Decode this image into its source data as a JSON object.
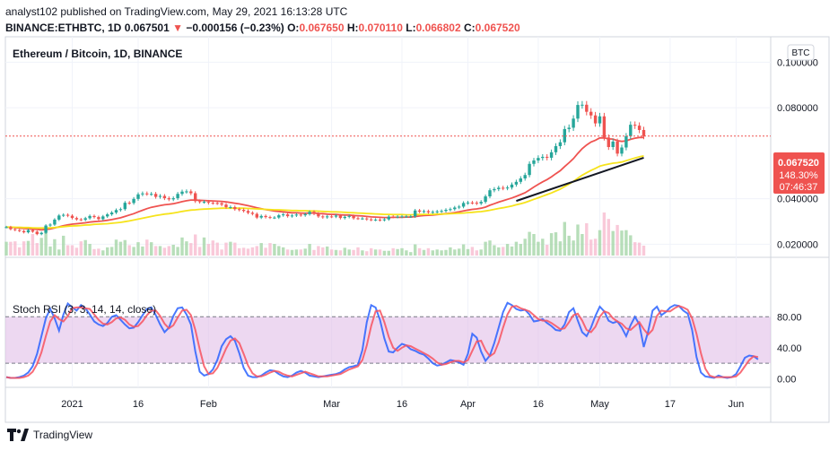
{
  "header": {
    "publish_line": "analyst102 published on TradingView.com, May 29, 2021 16:13:28 UTC",
    "symbol": "BINANCE:ETHBTC, 1D",
    "last": "0.067501",
    "change_arrow": "▼",
    "change": "−0.000156 (−0.23%)",
    "o_label": "O:",
    "o_value": "0.067650",
    "h_label": "H:",
    "h_value": "0.070110",
    "l_label": "L:",
    "l_value": "0.066802",
    "c_label": "C:",
    "c_value": "0.067520"
  },
  "chart_data": [
    {
      "type": "candlestick",
      "title": "Ethereum / Bitcoin, 1D, BINANCE",
      "currency_badge": "BTC",
      "y_axis_ticks": [
        {
          "value": 0.1,
          "label": "0.100000"
        },
        {
          "value": 0.08,
          "label": "0.080000"
        },
        {
          "value": 0.04,
          "label": "0.040000"
        },
        {
          "value": 0.02,
          "label": "0.020000"
        }
      ],
      "ylim": [
        0.015,
        0.11
      ],
      "price_label": {
        "value": 0.06752,
        "price": "0.067520",
        "change_pct": "148.30%",
        "countdown": "07:46:37"
      },
      "close_series": [
        0.0275,
        0.0266,
        0.0262,
        0.0258,
        0.0252,
        0.0262,
        0.0255,
        0.0244,
        0.025,
        0.0282,
        0.0286,
        0.0308,
        0.0326,
        0.0329,
        0.0325,
        0.0315,
        0.0309,
        0.0307,
        0.0314,
        0.0324,
        0.0319,
        0.031,
        0.0322,
        0.0331,
        0.0339,
        0.035,
        0.0354,
        0.0382,
        0.0381,
        0.0399,
        0.0419,
        0.0423,
        0.0421,
        0.0421,
        0.0408,
        0.0412,
        0.0402,
        0.0397,
        0.0402,
        0.0421,
        0.0431,
        0.0432,
        0.0424,
        0.0389,
        0.0386,
        0.0386,
        0.0382,
        0.0381,
        0.038,
        0.0374,
        0.0363,
        0.0363,
        0.0354,
        0.0351,
        0.0346,
        0.0338,
        0.0333,
        0.0317,
        0.0324,
        0.0319,
        0.0317,
        0.0317,
        0.0327,
        0.0331,
        0.0323,
        0.0326,
        0.033,
        0.0327,
        0.0332,
        0.0342,
        0.0334,
        0.0322,
        0.0318,
        0.0322,
        0.0321,
        0.0326,
        0.0315,
        0.032,
        0.0324,
        0.0314,
        0.0313,
        0.0313,
        0.0309,
        0.0307,
        0.0308,
        0.0306,
        0.0309,
        0.0321,
        0.032,
        0.0321,
        0.0322,
        0.0322,
        0.0322,
        0.0348,
        0.0343,
        0.0345,
        0.034,
        0.0342,
        0.0344,
        0.0346,
        0.0351,
        0.0354,
        0.0361,
        0.0365,
        0.0381,
        0.0383,
        0.0382,
        0.0379,
        0.0386,
        0.041,
        0.0437,
        0.0442,
        0.0448,
        0.0446,
        0.0449,
        0.0462,
        0.0474,
        0.0489,
        0.0504,
        0.0553,
        0.0568,
        0.0579,
        0.0584,
        0.058,
        0.0604,
        0.0631,
        0.0648,
        0.0706,
        0.0712,
        0.0752,
        0.0812,
        0.0813,
        0.0782,
        0.0766,
        0.0731,
        0.0762,
        0.0669,
        0.0627,
        0.0651,
        0.0598,
        0.0625,
        0.0675,
        0.0725,
        0.0721,
        0.0702,
        0.0675
      ],
      "ema_series": [
        {
          "name": "EMA 20",
          "color": "#ef5350",
          "values": [
            0.0275,
            0.0274,
            0.0273,
            0.0271,
            0.0269,
            0.0268,
            0.0267,
            0.0265,
            0.0263,
            0.0265,
            0.0267,
            0.0271,
            0.0276,
            0.0281,
            0.0285,
            0.0288,
            0.029,
            0.0292,
            0.0294,
            0.0297,
            0.0299,
            0.03,
            0.0302,
            0.0305,
            0.0308,
            0.0312,
            0.0316,
            0.0322,
            0.0328,
            0.0334,
            0.0342,
            0.0349,
            0.0356,
            0.0362,
            0.0366,
            0.037,
            0.0373,
            0.0375,
            0.0378,
            0.0382,
            0.0387,
            0.0391,
            0.0394,
            0.0394,
            0.0393,
            0.0392,
            0.0391,
            0.039,
            0.0389,
            0.0388,
            0.0386,
            0.0383,
            0.038,
            0.0377,
            0.0373,
            0.0369,
            0.0365,
            0.036,
            0.0356,
            0.0352,
            0.0349,
            0.0346,
            0.0344,
            0.0342,
            0.034,
            0.0338,
            0.0338,
            0.0337,
            0.0336,
            0.0337,
            0.0337,
            0.0335,
            0.0334,
            0.0332,
            0.0331,
            0.0331,
            0.0329,
            0.0328,
            0.0328,
            0.0326,
            0.0325,
            0.0324,
            0.0322,
            0.032,
            0.0319,
            0.0318,
            0.0317,
            0.0317,
            0.0318,
            0.0318,
            0.0318,
            0.0319,
            0.0319,
            0.0321,
            0.0324,
            0.0326,
            0.0327,
            0.0328,
            0.033,
            0.0332,
            0.0334,
            0.0336,
            0.0339,
            0.0342,
            0.0346,
            0.035,
            0.0353,
            0.0355,
            0.0358,
            0.0363,
            0.0371,
            0.0378,
            0.0385,
            0.0391,
            0.0397,
            0.0403,
            0.041,
            0.0418,
            0.0426,
            0.0438,
            0.0451,
            0.0463,
            0.0474,
            0.0484,
            0.0496,
            0.051,
            0.0523,
            0.0541,
            0.0558,
            0.0576,
            0.0599,
            0.062,
            0.0636,
            0.0649,
            0.0657,
            0.0667,
            0.0667,
            0.0663,
            0.0662,
            0.0655,
            0.0652,
            0.0654,
            0.0661,
            0.0666,
            0.0669,
            0.0669
          ]
        },
        {
          "name": "EMA 50",
          "color": "#f6e31c",
          "values": [
            0.0275,
            0.0275,
            0.0274,
            0.0274,
            0.0273,
            0.0273,
            0.0272,
            0.0271,
            0.0271,
            0.0271,
            0.0272,
            0.0273,
            0.0275,
            0.0277,
            0.0279,
            0.028,
            0.0281,
            0.0282,
            0.0284,
            0.0285,
            0.0287,
            0.0288,
            0.0289,
            0.029,
            0.0292,
            0.0294,
            0.0296,
            0.0299,
            0.0302,
            0.0306,
            0.031,
            0.0314,
            0.0318,
            0.0322,
            0.0326,
            0.0329,
            0.0332,
            0.0334,
            0.0337,
            0.034,
            0.0344,
            0.0347,
            0.035,
            0.0351,
            0.0353,
            0.0354,
            0.0355,
            0.0356,
            0.0357,
            0.0358,
            0.0358,
            0.0358,
            0.0358,
            0.0358,
            0.0358,
            0.0357,
            0.0356,
            0.0355,
            0.0354,
            0.0353,
            0.0352,
            0.0351,
            0.0351,
            0.035,
            0.0349,
            0.0348,
            0.0348,
            0.0347,
            0.0347,
            0.0346,
            0.0346,
            0.0345,
            0.0344,
            0.0343,
            0.0342,
            0.0342,
            0.0341,
            0.034,
            0.0339,
            0.0338,
            0.0337,
            0.0336,
            0.0335,
            0.0334,
            0.0333,
            0.0332,
            0.0331,
            0.0331,
            0.033,
            0.033,
            0.033,
            0.0329,
            0.0329,
            0.033,
            0.033,
            0.0331,
            0.0331,
            0.0331,
            0.0332,
            0.0332,
            0.0333,
            0.0334,
            0.0335,
            0.0336,
            0.0337,
            0.0339,
            0.034,
            0.0342,
            0.0343,
            0.0346,
            0.0349,
            0.0353,
            0.0357,
            0.036,
            0.0364,
            0.0368,
            0.0373,
            0.0378,
            0.0383,
            0.039,
            0.0397,
            0.0404,
            0.0411,
            0.0418,
            0.0425,
            0.0434,
            0.0442,
            0.0453,
            0.0464,
            0.0476,
            0.049,
            0.0503,
            0.0514,
            0.0524,
            0.0533,
            0.0543,
            0.0548,
            0.0552,
            0.0556,
            0.0558,
            0.0561,
            0.0567,
            0.0573,
            0.0579,
            0.0584,
            0.0588
          ]
        }
      ],
      "trend_line": {
        "color": "#131722",
        "from": {
          "index": 116,
          "value": 0.039
        },
        "to": {
          "index": 145,
          "value": 0.058
        }
      },
      "volume_series": [
        0.32,
        0.32,
        0.33,
        0.19,
        0.33,
        0.34,
        0.5,
        0.29,
        0.41,
        0.62,
        0.21,
        0.38,
        0.14,
        0.46,
        0.24,
        0.24,
        0.18,
        0.33,
        0.36,
        0.27,
        0.15,
        0.16,
        0.12,
        0.19,
        0.2,
        0.37,
        0.32,
        0.36,
        0.24,
        0.2,
        0.31,
        0.21,
        0.37,
        0.31,
        0.22,
        0.22,
        0.18,
        0.22,
        0.25,
        0.2,
        0.42,
        0.33,
        0.29,
        0.49,
        0.2,
        0.42,
        0.27,
        0.35,
        0.3,
        0.14,
        0.3,
        0.32,
        0.3,
        0.17,
        0.18,
        0.16,
        0.19,
        0.22,
        0.29,
        0.18,
        0.29,
        0.27,
        0.22,
        0.19,
        0.14,
        0.13,
        0.14,
        0.14,
        0.16,
        0.27,
        0.13,
        0.22,
        0.19,
        0.21,
        0.14,
        0.13,
        0.12,
        0.18,
        0.14,
        0.13,
        0.19,
        0.12,
        0.1,
        0.17,
        0.14,
        0.14,
        0.11,
        0.11,
        0.17,
        0.15,
        0.17,
        0.12,
        0.08,
        0.26,
        0.17,
        0.13,
        0.17,
        0.12,
        0.14,
        0.12,
        0.13,
        0.19,
        0.14,
        0.16,
        0.26,
        0.15,
        0.2,
        0.12,
        0.14,
        0.32,
        0.35,
        0.24,
        0.19,
        0.2,
        0.27,
        0.21,
        0.32,
        0.27,
        0.39,
        0.55,
        0.5,
        0.32,
        0.39,
        0.25,
        0.52,
        0.54,
        0.33,
        0.78,
        0.46,
        0.35,
        0.72,
        0.5,
        0.75,
        0.37,
        0.39,
        0.59,
        1.0,
        0.85,
        0.57,
        0.71,
        0.58,
        0.59,
        0.47,
        0.31,
        0.3,
        0.23
      ],
      "x_axis_labels": [
        {
          "index": 15,
          "label": "2021"
        },
        {
          "index": 30,
          "label": "16"
        },
        {
          "index": 46,
          "label": "Feb"
        },
        {
          "index": 74,
          "label": "Mar"
        },
        {
          "index": 90,
          "label": "16"
        },
        {
          "index": 105,
          "label": "Apr"
        },
        {
          "index": 121,
          "label": "16"
        },
        {
          "index": 135,
          "label": "May"
        },
        {
          "index": 151,
          "label": "17"
        },
        {
          "index": 166,
          "label": "Jun"
        }
      ]
    },
    {
      "type": "line",
      "title": "Stoch RSI (3, 3, 14, 14, close)",
      "ylim": [
        -10,
        100
      ],
      "band": [
        20,
        80
      ],
      "y_axis_ticks": [
        {
          "value": 80,
          "label": "80.00"
        },
        {
          "value": 40,
          "label": "40.00"
        },
        {
          "value": 0,
          "label": "0.00"
        }
      ],
      "series": [
        {
          "name": "K",
          "color": "#2962ff",
          "values": [
            2,
            1,
            1,
            2,
            4,
            8,
            16,
            32,
            55,
            78,
            90,
            78,
            62,
            83,
            97,
            92,
            88,
            95,
            91,
            83,
            74,
            70,
            68,
            72,
            80,
            82,
            76,
            70,
            65,
            66,
            73,
            82,
            90,
            92,
            82,
            70,
            60,
            66,
            81,
            91,
            92,
            83,
            70,
            35,
            9,
            4,
            6,
            12,
            24,
            42,
            51,
            55,
            49,
            33,
            14,
            4,
            2,
            2,
            4,
            8,
            11,
            10,
            6,
            3,
            2,
            4,
            8,
            10,
            8,
            4,
            3,
            2,
            3,
            4,
            5,
            6,
            8,
            12,
            15,
            16,
            18,
            37,
            73,
            95,
            92,
            76,
            52,
            35,
            34,
            40,
            45,
            43,
            38,
            36,
            33,
            31,
            26,
            20,
            17,
            18,
            21,
            24,
            23,
            21,
            18,
            32,
            58,
            53,
            35,
            23,
            30,
            46,
            66,
            86,
            98,
            95,
            90,
            88,
            89,
            83,
            74,
            75,
            77,
            72,
            68,
            63,
            62,
            70,
            86,
            91,
            75,
            60,
            55,
            66,
            81,
            93,
            87,
            75,
            72,
            74,
            66,
            55,
            69,
            80,
            70,
            41,
            61,
            88,
            93,
            82,
            86,
            92,
            95,
            94,
            88,
            84,
            63,
            28,
            8,
            3,
            2,
            1,
            4,
            2,
            1,
            2,
            6,
            16,
            27,
            30,
            29,
            25
          ]
        },
        {
          "name": "D",
          "color": "#f7525f",
          "values": [
            2,
            1,
            1,
            1,
            2,
            4,
            9,
            19,
            34,
            55,
            74,
            82,
            77,
            74,
            81,
            91,
            92,
            92,
            91,
            90,
            83,
            76,
            71,
            70,
            73,
            78,
            79,
            76,
            70,
            67,
            68,
            74,
            82,
            88,
            88,
            81,
            71,
            65,
            69,
            79,
            88,
            89,
            82,
            63,
            38,
            16,
            6,
            7,
            14,
            26,
            39,
            49,
            52,
            46,
            32,
            17,
            7,
            3,
            3,
            5,
            8,
            10,
            9,
            6,
            4,
            3,
            5,
            7,
            9,
            7,
            5,
            3,
            3,
            3,
            4,
            5,
            6,
            9,
            12,
            14,
            16,
            24,
            43,
            68,
            87,
            88,
            73,
            54,
            40,
            36,
            40,
            43,
            42,
            39,
            36,
            33,
            30,
            26,
            21,
            18,
            19,
            21,
            23,
            23,
            21,
            24,
            36,
            48,
            49,
            37,
            29,
            33,
            47,
            66,
            83,
            93,
            94,
            91,
            89,
            87,
            82,
            77,
            75,
            75,
            72,
            68,
            64,
            65,
            73,
            82,
            84,
            75,
            63,
            60,
            67,
            80,
            87,
            85,
            78,
            74,
            71,
            65,
            63,
            68,
            73,
            64,
            57,
            63,
            81,
            88,
            87,
            87,
            91,
            94,
            92,
            89,
            78,
            58,
            33,
            13,
            4,
            2,
            2,
            2,
            2,
            2,
            3,
            8,
            16,
            24,
            29,
            28
          ]
        }
      ]
    }
  ],
  "footer": {
    "brand": "TradingView"
  }
}
